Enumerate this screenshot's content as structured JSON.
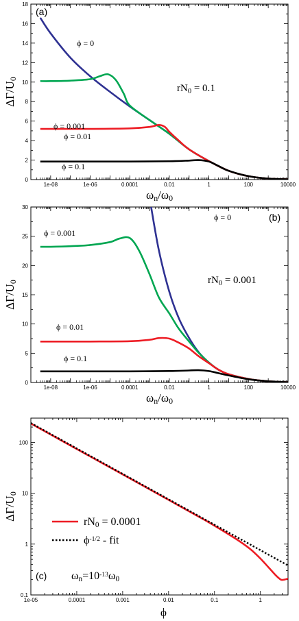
{
  "chart_data": [
    {
      "type": "line",
      "panel_label": "(a)",
      "xscale": "log",
      "xlim": [
        1e-09,
        10000
      ],
      "ylim": [
        0,
        18
      ],
      "xticks": [
        "1e-08",
        "1e-06",
        "0.0001",
        "0.01",
        "1",
        "100",
        "10000"
      ],
      "yticks": [
        "0",
        "2",
        "4",
        "6",
        "8",
        "10",
        "12",
        "14",
        "16",
        "18"
      ],
      "xlabel": "ωn/ω0",
      "ylabel": "ΔΓ/U0",
      "annotation": "rN0 = 0.1",
      "series": [
        {
          "name": "ϕ = 0",
          "color": "#2e3192",
          "x": [
            3e-09,
            1e-08,
            1e-07,
            1e-06,
            1e-05,
            0.0001,
            0.001,
            0.01,
            0.1,
            1,
            10,
            100,
            1000,
            10000
          ],
          "y": [
            16.6,
            15.0,
            12.5,
            10.6,
            9.0,
            7.5,
            6.1,
            4.7,
            3.1,
            1.9,
            0.9,
            0.35,
            0.1,
            0.03
          ]
        },
        {
          "name": "ϕ = 0.001",
          "color": "#00a651",
          "x": [
            3e-09,
            1e-08,
            1e-07,
            1e-06,
            3e-06,
            8e-06,
            2e-05,
            5e-05,
            0.0001,
            0.001,
            0.01,
            0.1,
            1,
            10,
            100,
            1000,
            10000
          ],
          "y": [
            10.1,
            10.1,
            10.15,
            10.3,
            10.6,
            10.8,
            10.2,
            8.8,
            7.6,
            6.1,
            4.7,
            3.1,
            1.9,
            0.9,
            0.35,
            0.1,
            0.03
          ]
        },
        {
          "name": "ϕ = 0.01",
          "color": "#ed1c24",
          "x": [
            3e-09,
            1e-08,
            1e-06,
            0.0001,
            0.001,
            0.003,
            0.006,
            0.01,
            0.03,
            0.1,
            1,
            10,
            100,
            1000,
            10000
          ],
          "y": [
            5.2,
            5.2,
            5.2,
            5.25,
            5.4,
            5.6,
            5.4,
            4.9,
            4.0,
            3.1,
            1.9,
            0.9,
            0.35,
            0.1,
            0.03
          ]
        },
        {
          "name": "ϕ = 0.1",
          "color": "#000000",
          "x": [
            3e-09,
            1e-08,
            1e-06,
            0.0001,
            0.01,
            0.1,
            0.3,
            1,
            3,
            10,
            100,
            1000,
            10000
          ],
          "y": [
            1.85,
            1.85,
            1.85,
            1.85,
            1.88,
            1.95,
            2.0,
            1.85,
            1.4,
            0.9,
            0.35,
            0.1,
            0.03
          ]
        }
      ]
    },
    {
      "type": "line",
      "panel_label": "(b)",
      "xscale": "log",
      "xlim": [
        1e-09,
        10000
      ],
      "ylim": [
        0,
        30
      ],
      "xticks": [
        "1e-08",
        "1e-06",
        "0.0001",
        "0.01",
        "1",
        "100",
        "10000"
      ],
      "yticks": [
        "0",
        "5",
        "10",
        "15",
        "20",
        "25",
        "30"
      ],
      "xlabel": "ωn/ω0",
      "ylabel": "ΔΓ/U0",
      "annotation": "rN0 = 0.001",
      "series": [
        {
          "name": "ϕ = 0",
          "color": "#2e3192",
          "x": [
            0.0012,
            0.003,
            0.01,
            0.03,
            0.1,
            0.3,
            1,
            3,
            10,
            100,
            1000,
            10000
          ],
          "y": [
            30,
            22.5,
            15.5,
            11.0,
            7.6,
            5.2,
            3.4,
            2.2,
            1.4,
            0.6,
            0.2,
            0.05
          ]
        },
        {
          "name": "ϕ = 0.001",
          "color": "#00a651",
          "x": [
            3e-09,
            1e-08,
            1e-07,
            1e-06,
            1e-05,
            3e-05,
            0.0001,
            0.0003,
            0.001,
            0.003,
            0.01,
            0.03,
            0.1,
            0.3,
            1,
            3,
            10,
            100,
            1000,
            10000
          ],
          "y": [
            23.2,
            23.2,
            23.3,
            23.5,
            24.0,
            24.6,
            24.7,
            22.5,
            18.5,
            14.5,
            11.8,
            9.2,
            7.0,
            5.1,
            3.4,
            2.2,
            1.4,
            0.6,
            0.2,
            0.05
          ]
        },
        {
          "name": "ϕ = 0.01",
          "color": "#ed1c24",
          "x": [
            3e-09,
            1e-08,
            1e-06,
            0.0001,
            0.001,
            0.003,
            0.01,
            0.03,
            0.1,
            0.3,
            1,
            3,
            10,
            100,
            1000,
            10000
          ],
          "y": [
            7.0,
            7.0,
            7.0,
            7.05,
            7.3,
            7.6,
            7.5,
            6.8,
            5.8,
            4.5,
            3.3,
            2.2,
            1.4,
            0.6,
            0.2,
            0.05
          ]
        },
        {
          "name": "ϕ = 0.1",
          "color": "#000000",
          "x": [
            3e-09,
            1e-08,
            1e-06,
            0.0001,
            0.01,
            0.1,
            0.3,
            1,
            3,
            10,
            100,
            1000,
            10000
          ],
          "y": [
            1.9,
            1.9,
            1.9,
            1.9,
            1.95,
            2.05,
            2.1,
            1.95,
            1.6,
            1.2,
            0.55,
            0.2,
            0.05
          ]
        }
      ]
    },
    {
      "type": "line",
      "panel_label": "(c)",
      "xscale": "log",
      "yscale": "log",
      "xlim": [
        1e-05,
        4
      ],
      "ylim": [
        0.1,
        300
      ],
      "xticks": [
        "1e-05",
        "0.0001",
        "0.001",
        "0.01",
        "0.1",
        "1"
      ],
      "yticks": [
        "0.1",
        "1",
        "10",
        "100"
      ],
      "xlabel": "ϕ",
      "ylabel": "ΔΓ/U0",
      "annotation": "ωn=10-13ω0",
      "legend": "left",
      "series": [
        {
          "name": "rN0 = 0.0001",
          "color": "#ed1c24",
          "style": "solid",
          "x": [
            1e-05,
            0.0001,
            0.001,
            0.01,
            0.05,
            0.1,
            0.3,
            0.6,
            1,
            1.5,
            2.2,
            2.8,
            3.3,
            4
          ],
          "y": [
            235,
            74,
            23.5,
            7.4,
            3.3,
            2.3,
            1.25,
            0.8,
            0.52,
            0.35,
            0.24,
            0.2,
            0.2,
            0.21
          ]
        },
        {
          "name": "ϕ-1/2 - fit",
          "color": "#000000",
          "style": "dotted",
          "x": [
            1e-05,
            4
          ],
          "y": [
            240,
            0.38
          ]
        }
      ]
    }
  ]
}
